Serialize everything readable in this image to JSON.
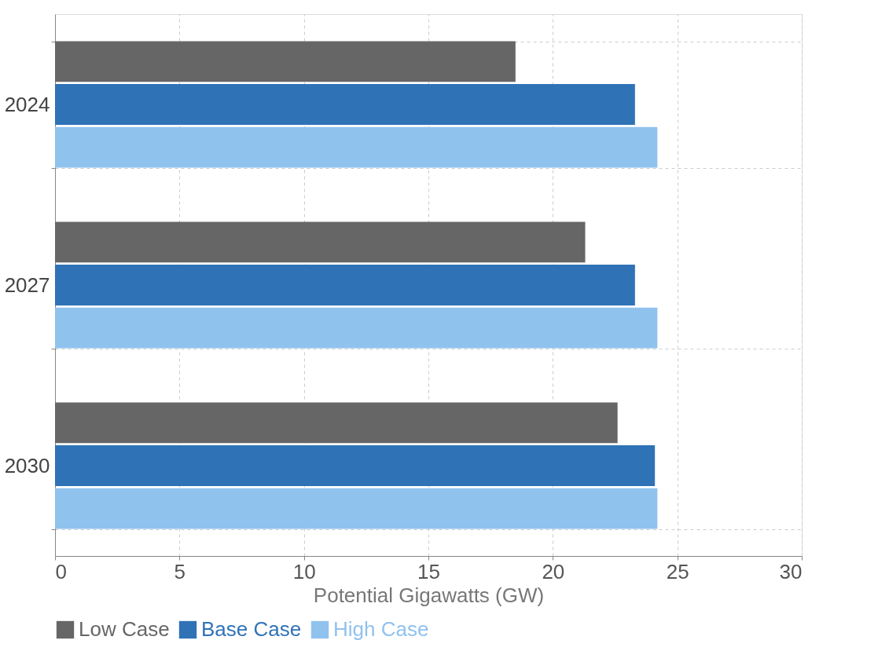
{
  "chart_data": {
    "type": "bar",
    "orientation": "horizontal",
    "xlabel": "Potential Gigawatts (GW)",
    "categories": [
      "2024",
      "2027",
      "2030"
    ],
    "series": [
      {
        "name": "Low Case",
        "color": "#666666",
        "values": [
          18.5,
          21.3,
          22.6
        ]
      },
      {
        "name": "Base Case",
        "color": "#2f72b6",
        "values": [
          23.3,
          23.3,
          24.1
        ]
      },
      {
        "name": "High Case",
        "color": "#90c2ee",
        "values": [
          24.2,
          24.2,
          24.2
        ]
      }
    ],
    "xlim": [
      0,
      30
    ],
    "xticks": [
      0,
      5,
      10,
      15,
      20,
      25,
      30
    ],
    "grid": true,
    "legend": "bottom"
  }
}
